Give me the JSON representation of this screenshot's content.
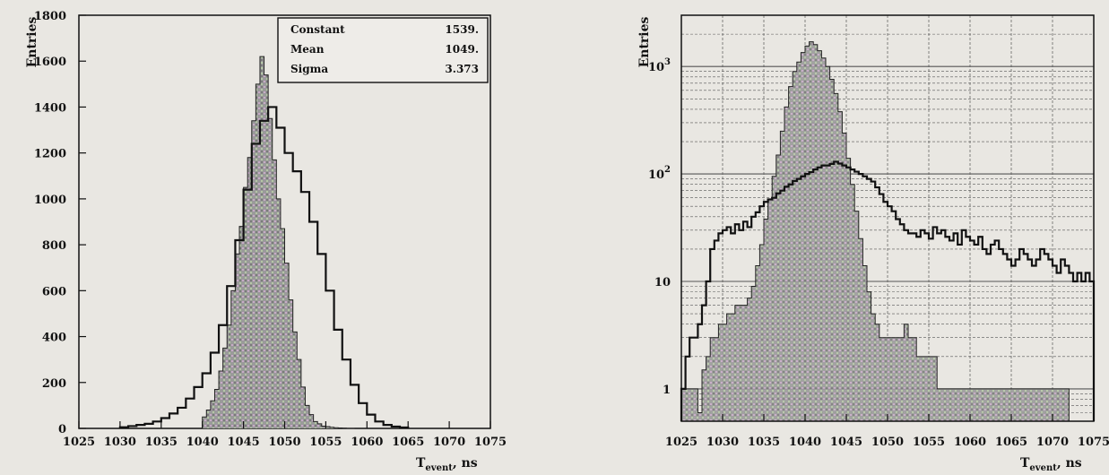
{
  "chart_data": [
    {
      "type": "histogram",
      "panel": "left",
      "ylabel": "Entries",
      "xlabel": "T",
      "xlabel_subscript": "event",
      "xlabel_unit": ", ns",
      "xlim": [
        1025,
        1075
      ],
      "ylim": [
        0,
        1800
      ],
      "x_ticks": [
        1025,
        1030,
        1035,
        1040,
        1045,
        1050,
        1055,
        1060,
        1065,
        1070,
        1075
      ],
      "y_ticks": [
        0,
        200,
        400,
        600,
        800,
        1000,
        1200,
        1400,
        1600,
        1800
      ],
      "bin_edges": [
        1030.0,
        1031.0,
        1032.0,
        1033.0,
        1034.0,
        1035.0,
        1036.0,
        1037.0,
        1038.0,
        1039.0,
        1040.0,
        1041.0,
        1042.0,
        1043.0,
        1044.0,
        1045.0,
        1046.0,
        1047.0,
        1048.0,
        1049.0,
        1050.0,
        1051.0,
        1052.0,
        1053.0,
        1054.0,
        1055.0,
        1056.0,
        1057.0,
        1058.0,
        1059.0,
        1060.0,
        1061.0,
        1062.0,
        1063.0,
        1064.0,
        1065.0
      ],
      "series": [
        {
          "role": "filled",
          "bins_from": 1040.0,
          "bins_to": 1058.5,
          "values": [
            50,
            80,
            120,
            170,
            250,
            350,
            450,
            600,
            760,
            880,
            1050,
            1180,
            1340,
            1500,
            1620,
            1540,
            1350,
            1170,
            1000,
            870,
            720,
            560,
            420,
            300,
            180,
            100,
            60,
            30,
            20,
            10,
            8,
            5,
            3,
            2,
            1,
            0,
            0
          ]
        },
        {
          "role": "outline",
          "bins_from": 1030.0,
          "bins_to": 1065.0,
          "values": [
            5,
            10,
            15,
            20,
            30,
            45,
            65,
            90,
            130,
            180,
            240,
            330,
            450,
            620,
            820,
            1040,
            1240,
            1340,
            1400,
            1310,
            1200,
            1120,
            1030,
            900,
            760,
            600,
            430,
            300,
            190,
            110,
            60,
            30,
            15,
            8,
            4
          ]
        }
      ],
      "stats": [
        {
          "label": "Constant",
          "value": "1539."
        },
        {
          "label": "Mean",
          "value": "1049."
        },
        {
          "label": "Sigma",
          "value": "3.373"
        }
      ]
    },
    {
      "type": "histogram",
      "panel": "right",
      "ylabel": "Entries",
      "xlabel": "T",
      "xlabel_subscript": "event",
      "xlabel_unit": ", ns",
      "xlim": [
        1025,
        1075
      ],
      "ylim": [
        0.5,
        3000
      ],
      "yscale": "log",
      "x_ticks": [
        1025,
        1030,
        1035,
        1040,
        1045,
        1050,
        1055,
        1060,
        1065,
        1070,
        1075
      ],
      "y_ticks": [
        {
          "base": "1",
          "exp": ""
        },
        {
          "base": "10",
          "exp": ""
        },
        {
          "base": "10",
          "exp": "2"
        },
        {
          "base": "10",
          "exp": "3"
        }
      ],
      "grid": true,
      "series": [
        {
          "role": "filled",
          "bins_from": 1025.0,
          "bins_to": 1072.0,
          "values": [
            1,
            1,
            1,
            1,
            0.6,
            1.5,
            2,
            3,
            3,
            4,
            4,
            5,
            5,
            6,
            6,
            6,
            7,
            9,
            14,
            22,
            38,
            58,
            95,
            150,
            250,
            420,
            650,
            900,
            1100,
            1350,
            1550,
            1700,
            1600,
            1400,
            1200,
            1000,
            760,
            560,
            380,
            240,
            140,
            80,
            45,
            25,
            14,
            8,
            5,
            4,
            3,
            3,
            3,
            3,
            3,
            3,
            4,
            3,
            3,
            2,
            2,
            2,
            2,
            2,
            1,
            1,
            1,
            1,
            1,
            1,
            1,
            1,
            1,
            1,
            1,
            1,
            1,
            1,
            1,
            1,
            1,
            1,
            1,
            1,
            1,
            1,
            1,
            1,
            1,
            1,
            1,
            1,
            1,
            1,
            1,
            1
          ]
        },
        {
          "role": "outline",
          "bins_from": 1025.0,
          "bins_to": 1075.0,
          "values": [
            1,
            2,
            3,
            3,
            4,
            6,
            10,
            20,
            24,
            28,
            30,
            32,
            28,
            34,
            30,
            36,
            32,
            40,
            44,
            50,
            55,
            58,
            60,
            66,
            70,
            76,
            80,
            86,
            90,
            95,
            100,
            104,
            110,
            115,
            120,
            120,
            124,
            130,
            125,
            120,
            115,
            110,
            105,
            100,
            95,
            90,
            85,
            75,
            65,
            55,
            50,
            45,
            38,
            34,
            30,
            28,
            28,
            26,
            30,
            28,
            25,
            32,
            28,
            30,
            26,
            24,
            28,
            22,
            30,
            26,
            24,
            22,
            26,
            20,
            18,
            22,
            24,
            20,
            18,
            16,
            14,
            16,
            20,
            18,
            16,
            14,
            16,
            20,
            18,
            16,
            14,
            12,
            16,
            14,
            12,
            10,
            12,
            10,
            12,
            10
          ]
        }
      ]
    }
  ]
}
